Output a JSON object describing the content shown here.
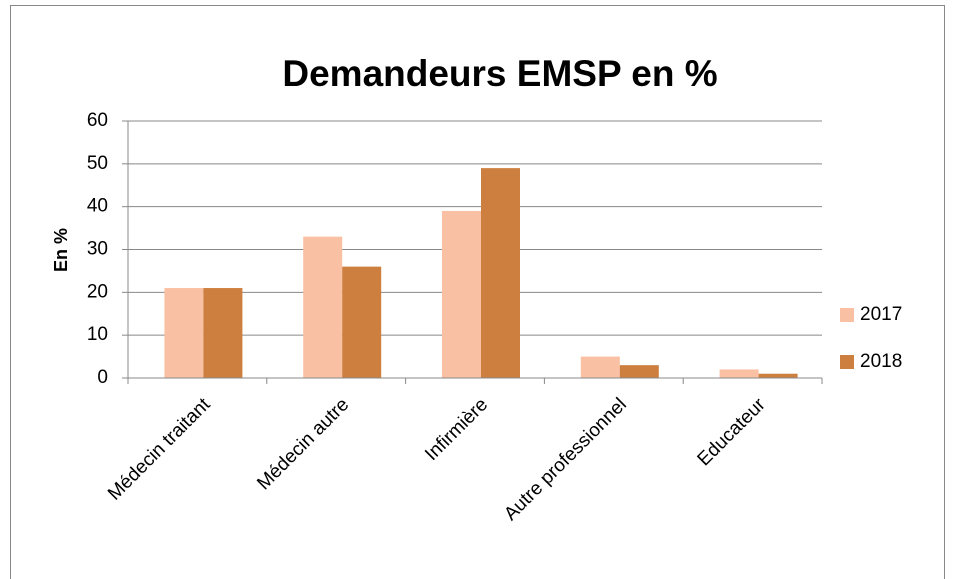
{
  "chart_data": {
    "type": "bar",
    "title": "Demandeurs EMSP en %",
    "y_label": "En %",
    "categories": [
      "Médecin traitant",
      "Médecin autre",
      "Infirmière",
      "Autre professionnel",
      "Educateur"
    ],
    "series": [
      {
        "name": "2017",
        "color": "#f9c0a3",
        "values": [
          21,
          33,
          39,
          5,
          2
        ]
      },
      {
        "name": "2018",
        "color": "#cd7f3f",
        "values": [
          21,
          26,
          49,
          3,
          1
        ]
      }
    ],
    "ylim": [
      0,
      60
    ],
    "yticks": [
      0,
      10,
      20,
      30,
      40,
      50,
      60
    ],
    "grid": true,
    "legend": "right"
  }
}
